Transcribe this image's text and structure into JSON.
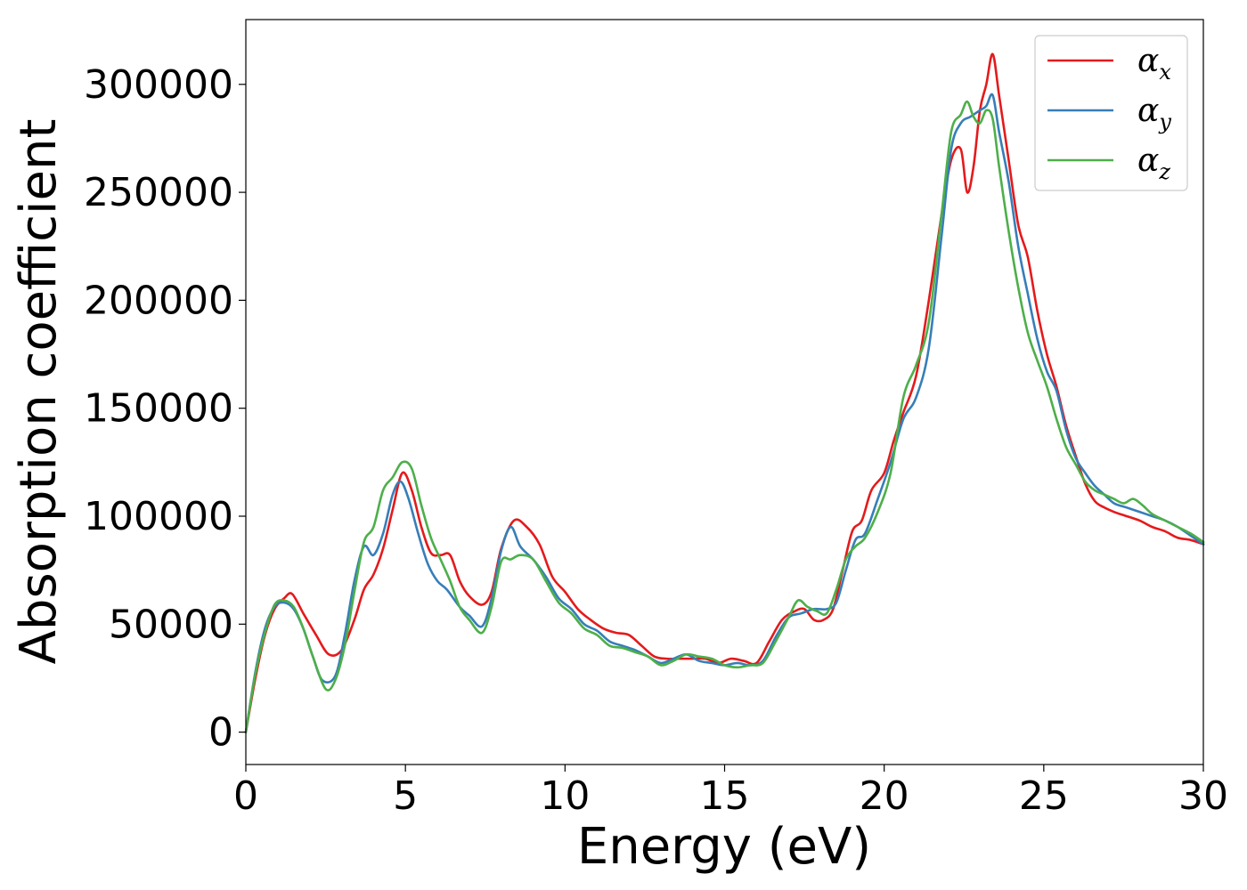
{
  "chart_data": {
    "type": "line",
    "title": "",
    "xlabel": "Energy (eV)",
    "ylabel": "Absorption coefficient",
    "xlim": [
      0,
      30
    ],
    "ylim": [
      -15000,
      330000
    ],
    "xticks": [
      0,
      5,
      10,
      15,
      20,
      25,
      30
    ],
    "yticks": [
      0,
      50000,
      100000,
      150000,
      200000,
      250000,
      300000
    ],
    "grid": false,
    "legend_position": "top-right",
    "series": [
      {
        "name": "α_x",
        "symbol": "α",
        "subscript": "x",
        "color": "#e41a1c",
        "x": [
          0,
          0.3,
          0.6,
          0.9,
          1.2,
          1.45,
          1.8,
          2.2,
          2.6,
          3.0,
          3.4,
          3.7,
          4.0,
          4.3,
          4.6,
          4.9,
          5.2,
          5.5,
          5.8,
          6.1,
          6.4,
          6.7,
          7.0,
          7.4,
          7.7,
          8.0,
          8.4,
          8.8,
          9.2,
          9.6,
          10.0,
          10.4,
          10.8,
          11.2,
          11.6,
          12.0,
          12.4,
          12.8,
          13.2,
          13.6,
          14.0,
          14.4,
          14.8,
          15.2,
          15.6,
          16.0,
          16.4,
          16.8,
          17.2,
          17.5,
          17.8,
          18.1,
          18.4,
          18.7,
          19.0,
          19.3,
          19.6,
          20.0,
          20.3,
          20.6,
          21.0,
          21.4,
          21.8,
          22.1,
          22.4,
          22.6,
          22.8,
          23.0,
          23.2,
          23.4,
          23.6,
          23.9,
          24.2,
          24.5,
          24.8,
          25.1,
          25.4,
          25.7,
          26.0,
          26.3,
          26.6,
          26.9,
          27.2,
          27.6,
          28.0,
          28.4,
          28.8,
          29.2,
          29.6,
          30.0
        ],
        "y": [
          0,
          25000,
          45000,
          57000,
          62000,
          64000,
          55000,
          45000,
          36000,
          38000,
          52000,
          66000,
          73000,
          85000,
          103000,
          120000,
          112000,
          95000,
          83000,
          82000,
          82000,
          70000,
          63000,
          59000,
          65000,
          85000,
          98000,
          95000,
          87000,
          72000,
          65000,
          57000,
          52000,
          48000,
          46000,
          45000,
          40000,
          35000,
          34000,
          34000,
          34000,
          34000,
          32000,
          34000,
          33000,
          32000,
          42000,
          52000,
          56000,
          57000,
          52000,
          52000,
          57000,
          75000,
          93000,
          98000,
          112000,
          120000,
          135000,
          148000,
          165000,
          200000,
          240000,
          265000,
          270000,
          250000,
          262000,
          288000,
          300000,
          314000,
          295000,
          265000,
          235000,
          220000,
          195000,
          175000,
          160000,
          142000,
          128000,
          115000,
          107000,
          104000,
          102000,
          100000,
          98000,
          95000,
          93000,
          90000,
          89000,
          87000
        ]
      },
      {
        "name": "α_y",
        "symbol": "α",
        "subscript": "y",
        "color": "#377eb8",
        "x": [
          0,
          0.3,
          0.6,
          0.9,
          1.2,
          1.5,
          1.8,
          2.1,
          2.4,
          2.8,
          3.1,
          3.4,
          3.7,
          4.0,
          4.3,
          4.6,
          4.85,
          5.1,
          5.4,
          5.7,
          6.0,
          6.3,
          6.7,
          7.0,
          7.4,
          7.7,
          8.0,
          8.3,
          8.6,
          9.0,
          9.4,
          9.8,
          10.2,
          10.6,
          11.0,
          11.4,
          11.8,
          12.2,
          12.6,
          13.0,
          13.4,
          13.8,
          14.2,
          14.6,
          15.0,
          15.4,
          15.8,
          16.2,
          16.6,
          17.0,
          17.4,
          17.8,
          18.2,
          18.5,
          18.8,
          19.1,
          19.4,
          19.8,
          20.2,
          20.6,
          21.0,
          21.4,
          21.8,
          22.1,
          22.4,
          22.7,
          23.0,
          23.2,
          23.4,
          23.6,
          23.9,
          24.2,
          24.5,
          24.8,
          25.1,
          25.4,
          25.7,
          26.0,
          26.3,
          26.6,
          26.9,
          27.2,
          27.6,
          28.0,
          28.4,
          28.8,
          29.2,
          29.6,
          30.0
        ],
        "y": [
          0,
          28000,
          48000,
          58000,
          60000,
          57000,
          48000,
          35000,
          24000,
          26000,
          45000,
          70000,
          86000,
          82000,
          92000,
          110000,
          116000,
          108000,
          92000,
          78000,
          70000,
          66000,
          58000,
          54000,
          49000,
          62000,
          84000,
          95000,
          86000,
          80000,
          72000,
          62000,
          57000,
          50000,
          47000,
          42000,
          40000,
          38000,
          35000,
          32000,
          34000,
          36000,
          33000,
          32000,
          31000,
          32000,
          31000,
          33000,
          44000,
          53000,
          55000,
          57000,
          57000,
          60000,
          75000,
          89000,
          92000,
          108000,
          125000,
          145000,
          155000,
          178000,
          230000,
          270000,
          282000,
          285000,
          288000,
          290000,
          295000,
          278000,
          255000,
          225000,
          203000,
          182000,
          167000,
          158000,
          140000,
          127000,
          120000,
          114000,
          110000,
          106000,
          104000,
          102000,
          100000,
          98000,
          95000,
          91000,
          87000
        ]
      },
      {
        "name": "α_z",
        "symbol": "α",
        "subscript": "z",
        "color": "#4daf4a",
        "x": [
          0,
          0.3,
          0.6,
          0.9,
          1.2,
          1.5,
          1.8,
          2.1,
          2.5,
          2.8,
          3.1,
          3.4,
          3.7,
          4.0,
          4.3,
          4.6,
          4.9,
          5.2,
          5.5,
          5.8,
          6.1,
          6.4,
          6.7,
          7.0,
          7.4,
          7.7,
          8.0,
          8.3,
          8.6,
          9.0,
          9.4,
          9.8,
          10.2,
          10.6,
          11.0,
          11.4,
          11.8,
          12.2,
          12.6,
          13.0,
          13.4,
          13.8,
          14.2,
          14.6,
          15.0,
          15.4,
          15.8,
          16.2,
          16.6,
          17.0,
          17.3,
          17.6,
          17.9,
          18.2,
          18.5,
          18.8,
          19.1,
          19.4,
          19.8,
          20.2,
          20.6,
          21.0,
          21.4,
          21.8,
          22.1,
          22.4,
          22.6,
          22.8,
          23.0,
          23.2,
          23.4,
          23.6,
          23.9,
          24.2,
          24.5,
          24.8,
          25.1,
          25.4,
          25.7,
          26.0,
          26.3,
          26.6,
          26.9,
          27.2,
          27.5,
          27.8,
          28.1,
          28.4,
          28.8,
          29.2,
          29.6,
          30.0
        ],
        "y": [
          0,
          27000,
          46000,
          59000,
          61000,
          58000,
          48000,
          35000,
          20000,
          24000,
          40000,
          65000,
          88000,
          95000,
          112000,
          118000,
          125000,
          122000,
          105000,
          90000,
          80000,
          70000,
          58000,
          52000,
          46000,
          58000,
          79000,
          80000,
          82000,
          80000,
          70000,
          60000,
          55000,
          48000,
          45000,
          40000,
          39000,
          37000,
          35000,
          31000,
          33000,
          36000,
          35000,
          34000,
          31000,
          30000,
          31000,
          32000,
          42000,
          53000,
          61000,
          58000,
          56000,
          55000,
          66000,
          80000,
          86000,
          90000,
          102000,
          120000,
          155000,
          170000,
          190000,
          240000,
          278000,
          286000,
          292000,
          285000,
          282000,
          288000,
          284000,
          262000,
          232000,
          206000,
          185000,
          172000,
          160000,
          145000,
          132000,
          124000,
          116000,
          112000,
          110000,
          108000,
          106000,
          108000,
          105000,
          101000,
          98000,
          95000,
          92000,
          88000
        ]
      }
    ]
  }
}
